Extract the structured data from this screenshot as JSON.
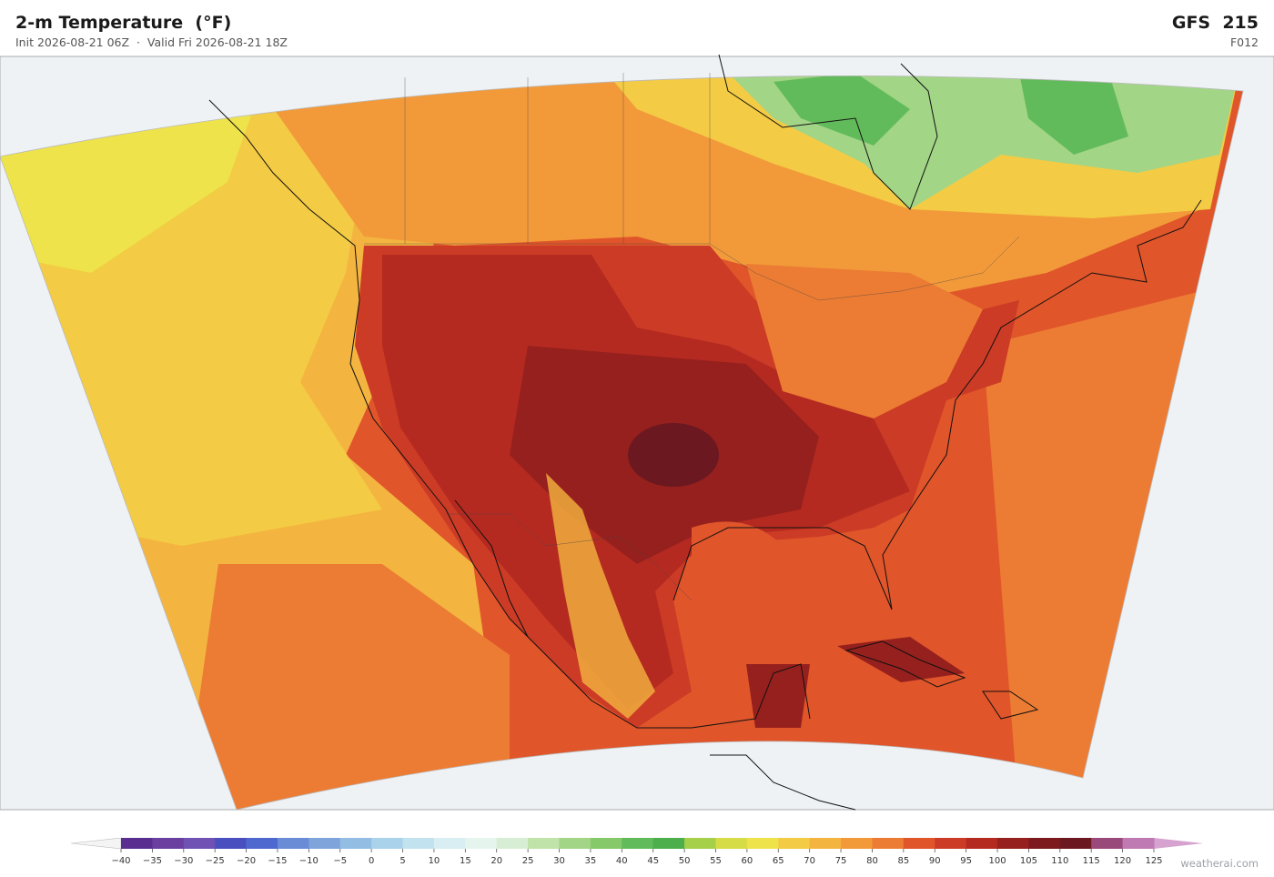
{
  "header": {
    "title": "2-m Temperature  (°F)",
    "subtitle": "Init 2026-08-21 06Z  ·  Valid Fri 2026-08-21 18Z",
    "model": "GFS  215",
    "forecast_hour": "F012"
  },
  "colorbar": {
    "ticks": [
      {
        "value": -40,
        "label": "−40"
      },
      {
        "value": -35,
        "label": "−35"
      },
      {
        "value": -30,
        "label": "−30"
      },
      {
        "value": -25,
        "label": "−25"
      },
      {
        "value": -20,
        "label": "−20"
      },
      {
        "value": -15,
        "label": "−15"
      },
      {
        "value": -10,
        "label": "−10"
      },
      {
        "value": -5,
        "label": "−5"
      },
      0,
      5,
      10,
      15,
      20,
      25,
      30,
      35,
      40,
      45,
      50,
      55,
      60,
      65,
      70,
      75,
      80,
      85,
      90,
      95,
      100,
      105,
      110,
      115,
      120,
      125
    ],
    "colors": [
      "#5a2d91",
      "#6b3fa0",
      "#6f52b3",
      "#4a4fbf",
      "#4f68cf",
      "#6a8bd6",
      "#7fa4dc",
      "#94bde3",
      "#aad2ea",
      "#c2e2ef",
      "#d9eef2",
      "#e6f4ee",
      "#d8eed4",
      "#bfe3a8",
      "#a2d586",
      "#86c96a",
      "#62bb5b",
      "#4caf4c",
      "#a6cf4a",
      "#d6dc45",
      "#eee34a",
      "#f4cb44",
      "#f4b440",
      "#f29a3a",
      "#ec7c33",
      "#e0552a",
      "#cc3b25",
      "#b52a20",
      "#96201d",
      "#7d1a1d",
      "#6b1820",
      "#9a4a7a",
      "#bf79b3"
    ],
    "under_color": "#f4f4f4",
    "over_color": "#d6a3d0"
  },
  "watermark": "weatherai.com"
}
